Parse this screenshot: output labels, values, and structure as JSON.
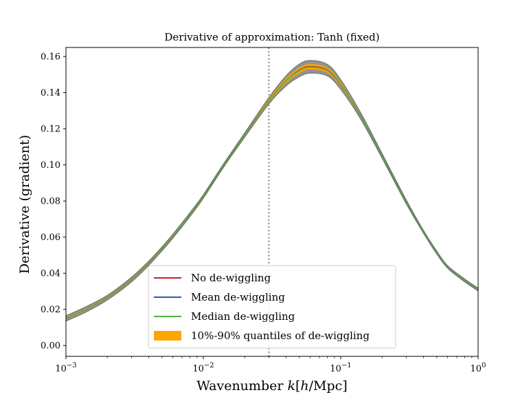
{
  "chart_data": {
    "type": "line",
    "title": "Derivative of approximation: Tanh (fixed)",
    "xlabel": "Wavenumber k[h/Mpc]",
    "ylabel": "Derivative (gradient)",
    "xscale": "log",
    "xlim": [
      0.001,
      1.0
    ],
    "ylim": [
      -0.006,
      0.165
    ],
    "x_ticks": [
      {
        "value": 0.001,
        "base": "10",
        "exp": "−3"
      },
      {
        "value": 0.01,
        "base": "10",
        "exp": "−2"
      },
      {
        "value": 0.1,
        "base": "10",
        "exp": "−1"
      },
      {
        "value": 1.0,
        "base": "10",
        "exp": "0"
      }
    ],
    "y_ticks": [
      {
        "value": 0.0,
        "label": "0.00"
      },
      {
        "value": 0.02,
        "label": "0.02"
      },
      {
        "value": 0.04,
        "label": "0.04"
      },
      {
        "value": 0.06,
        "label": "0.06"
      },
      {
        "value": 0.08,
        "label": "0.08"
      },
      {
        "value": 0.1,
        "label": "0.10"
      },
      {
        "value": 0.12,
        "label": "0.12"
      },
      {
        "value": 0.14,
        "label": "0.14"
      },
      {
        "value": 0.16,
        "label": "0.16"
      }
    ],
    "vline": {
      "x": 0.03,
      "style": "dotted",
      "color": "#808080"
    },
    "k": [
      0.001,
      0.0014,
      0.002,
      0.003,
      0.004,
      0.005,
      0.006,
      0.008,
      0.01,
      0.014,
      0.02,
      0.03,
      0.04,
      0.05,
      0.06,
      0.08,
      0.1,
      0.14,
      0.2,
      0.3,
      0.4,
      0.5,
      0.6,
      0.8,
      1.0
    ],
    "series": [
      {
        "name": "No de-wiggling",
        "color": "#cc1f1f",
        "values": [
          0.015,
          0.02,
          0.0265,
          0.0365,
          0.0455,
          0.0535,
          0.0605,
          0.0725,
          0.0825,
          0.0995,
          0.1165,
          0.1355,
          0.1465,
          0.1525,
          0.1545,
          0.1525,
          0.1445,
          0.127,
          0.105,
          0.0795,
          0.063,
          0.0515,
          0.0435,
          0.036,
          0.031
        ]
      },
      {
        "name": "Mean de-wiggling",
        "color": "#1f5fa8",
        "values": [
          0.015,
          0.02,
          0.0265,
          0.0365,
          0.0455,
          0.0535,
          0.0605,
          0.0725,
          0.0825,
          0.0995,
          0.1165,
          0.1355,
          0.1465,
          0.1522,
          0.1542,
          0.1522,
          0.1443,
          0.127,
          0.105,
          0.0795,
          0.063,
          0.0515,
          0.0435,
          0.036,
          0.031
        ]
      },
      {
        "name": "Median de-wiggling",
        "color": "#4fb03a",
        "values": [
          0.015,
          0.02,
          0.0265,
          0.0365,
          0.0455,
          0.0535,
          0.0605,
          0.0725,
          0.0825,
          0.0995,
          0.1165,
          0.1355,
          0.1465,
          0.1523,
          0.1543,
          0.1523,
          0.1444,
          0.127,
          0.105,
          0.0795,
          0.063,
          0.0515,
          0.0435,
          0.036,
          0.031
        ]
      }
    ],
    "band": {
      "name": "10%-90% quantiles of de-wiggling",
      "color": "#ffa500",
      "lower": [
        0.0145,
        0.0195,
        0.026,
        0.036,
        0.045,
        0.053,
        0.06,
        0.072,
        0.082,
        0.099,
        0.116,
        0.1345,
        0.1452,
        0.1508,
        0.1528,
        0.151,
        0.1433,
        0.1263,
        0.1045,
        0.079,
        0.0627,
        0.0512,
        0.0432,
        0.0357,
        0.0307
      ],
      "upper": [
        0.0155,
        0.0205,
        0.027,
        0.037,
        0.046,
        0.054,
        0.061,
        0.073,
        0.083,
        0.1,
        0.117,
        0.1365,
        0.1478,
        0.1538,
        0.1558,
        0.1538,
        0.1457,
        0.1277,
        0.1055,
        0.08,
        0.0633,
        0.0518,
        0.0438,
        0.0363,
        0.0313
      ]
    },
    "grey_envelope": {
      "color": "#808080",
      "lower": [
        0.0135,
        0.0185,
        0.0252,
        0.0352,
        0.0443,
        0.0524,
        0.0594,
        0.0714,
        0.0815,
        0.0985,
        0.1153,
        0.1337,
        0.1437,
        0.1488,
        0.1508,
        0.1492,
        0.1418,
        0.1252,
        0.1037,
        0.0784,
        0.0622,
        0.0507,
        0.0428,
        0.0352,
        0.0302
      ],
      "upper": [
        0.0165,
        0.0215,
        0.0278,
        0.0378,
        0.0467,
        0.0546,
        0.0616,
        0.0736,
        0.0835,
        0.1005,
        0.1177,
        0.1373,
        0.1493,
        0.1558,
        0.1578,
        0.1556,
        0.1472,
        0.1288,
        0.1063,
        0.0806,
        0.0638,
        0.0523,
        0.0442,
        0.0368,
        0.0318
      ]
    },
    "legend": {
      "position": "lower-center",
      "entries": [
        {
          "label": "No de-wiggling",
          "kind": "line",
          "color": "#cc1f1f"
        },
        {
          "label": "Mean de-wiggling",
          "kind": "line",
          "color": "#1f5fa8"
        },
        {
          "label": "Median de-wiggling",
          "kind": "line",
          "color": "#4fb03a"
        },
        {
          "label": "10%-90% quantiles of de-wiggling",
          "kind": "patch",
          "color": "#ffa500"
        }
      ]
    }
  }
}
